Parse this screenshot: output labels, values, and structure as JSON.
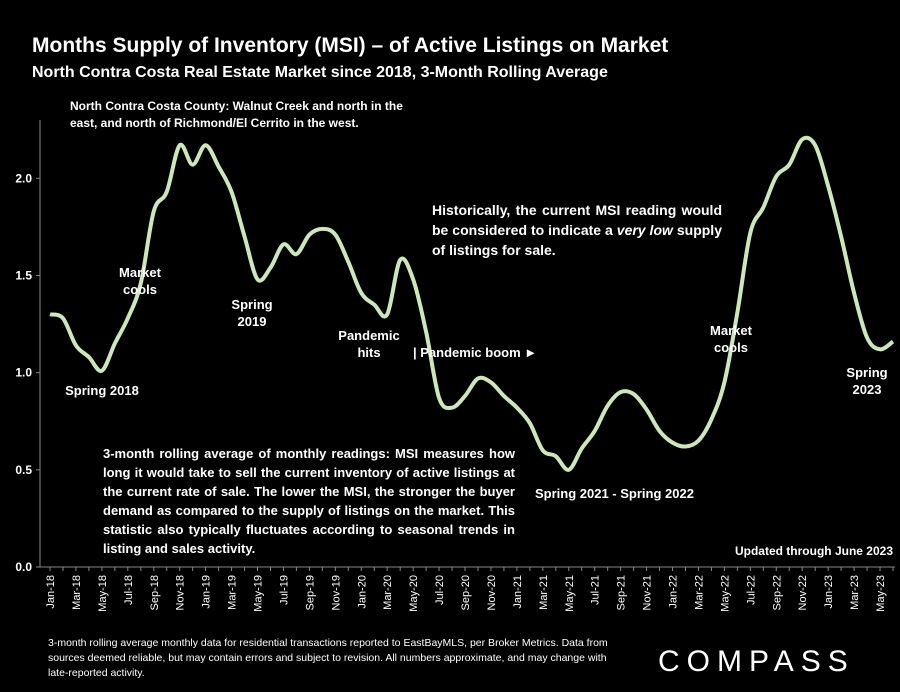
{
  "chart_data": {
    "type": "line",
    "title": "Months Supply of Inventory (MSI) – of Active Listings on Market",
    "subtitle": "North Contra Costa Real Estate Market since 2018, 3-Month Rolling Average",
    "categories": [
      "Jan-18",
      null,
      "Mar-18",
      null,
      "May-18",
      null,
      "Jul-18",
      null,
      "Sep-18",
      null,
      "Nov-18",
      null,
      "Jan-19",
      null,
      "Mar-19",
      null,
      "May-19",
      null,
      "Jul-19",
      null,
      "Sep-19",
      null,
      "Nov-19",
      null,
      "Jan-20",
      null,
      "Mar-20",
      null,
      "May-20",
      null,
      "Jul-20",
      null,
      "Sep-20",
      null,
      "Nov-20",
      null,
      "Jan-21",
      null,
      "Mar-21",
      null,
      "May-21",
      null,
      "Jul-21",
      null,
      "Sep-21",
      null,
      "Nov-21",
      null,
      "Jan-22",
      null,
      "Mar-22",
      null,
      "May-22",
      null,
      "Jul-22",
      null,
      "Sep-22",
      null,
      "Nov-22",
      null,
      "Jan-23",
      null,
      "Mar-23",
      null,
      "May-23",
      null
    ],
    "values": [
      1.3,
      1.28,
      1.14,
      1.08,
      1.01,
      1.15,
      1.28,
      1.46,
      1.83,
      1.93,
      2.17,
      2.07,
      2.17,
      2.06,
      1.93,
      1.7,
      1.48,
      1.54,
      1.66,
      1.61,
      1.71,
      1.74,
      1.71,
      1.57,
      1.41,
      1.35,
      1.3,
      1.58,
      1.48,
      1.21,
      0.87,
      0.82,
      0.88,
      0.97,
      0.95,
      0.88,
      0.82,
      0.74,
      0.6,
      0.57,
      0.5,
      0.61,
      0.7,
      0.83,
      0.9,
      0.89,
      0.81,
      0.7,
      0.64,
      0.62,
      0.65,
      0.76,
      0.95,
      1.31,
      1.72,
      1.85,
      2.01,
      2.07,
      2.2,
      2.17,
      1.96,
      1.7,
      1.41,
      1.18,
      1.12,
      1.16
    ],
    "color": "#cde8b8",
    "ylim": [
      0,
      2.3
    ],
    "yticks": [
      {
        "value": 0,
        "label": "0.0"
      },
      0.5,
      {
        "value": 1,
        "label": "1.0"
      },
      1.5,
      {
        "value": 2,
        "label": "2.0"
      }
    ],
    "grid": false,
    "annotations": [
      "North Contra Costa County: Walnut Creek and north in the east, and north of Richmond/El Cerrito in the west.",
      "Spring 2018",
      "Market cools",
      "Spring 2019",
      "Pandemic hits",
      "| Pandemic boom ►",
      "Spring 2021 - Spring 2022",
      "Market cools",
      "Spring 2023",
      "3-month rolling average of monthly readings: MSI measures how long it would take to sell the current inventory of active listings at the current rate of sale. The lower the MSI, the stronger the buyer demand as compared to the supply of listings on the market. This statistic also typically fluctuates according to seasonal trends in listing and sales activity.",
      "Updated through June 2023"
    ],
    "note_historical": [
      "Historically, the current MSI reading would be considered to indicate a ",
      "very low",
      " supply of listings for sale."
    ],
    "footnote": "3-month rolling average monthly data for residential transactions reported to EastBayMLS, per Broker Metrics. Data from sources deemed reliable, but may contain errors and subject to revision. All numbers approximate, and may change with late-reported activity.",
    "logo": "COMPASS"
  }
}
